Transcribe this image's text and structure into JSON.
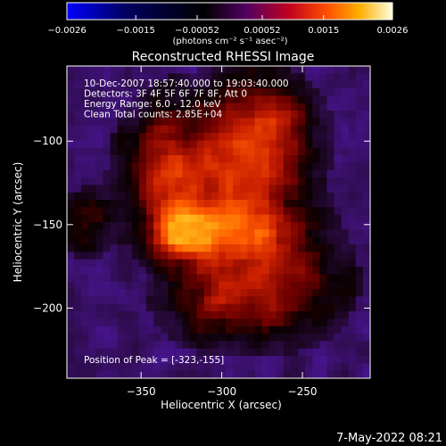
{
  "chart_data": {
    "type": "heatmap",
    "title": "Reconstructed RHESSI Image",
    "xlabel": "Heliocentric X (arcsec)",
    "ylabel": "Heliocentric Y (arcsec)",
    "xlim": [
      -396,
      -208
    ],
    "ylim": [
      -242,
      -55
    ],
    "xticks": [
      -350,
      -300,
      -250
    ],
    "yticks": [
      -100,
      -150,
      -200
    ],
    "xtick_labels": [
      "−350",
      "−300",
      "−250"
    ],
    "ytick_labels": [
      "−100",
      "−150",
      "−200"
    ],
    "colorbar": {
      "range": [
        -0.0026,
        0.0026
      ],
      "tick_values": [
        -0.0026,
        -0.0015,
        -0.00052,
        0.00052,
        0.0015,
        0.0026
      ],
      "tick_labels": [
        "−0.0026",
        "−0.0015",
        "−0.00052",
        "0.00052",
        "0.0015",
        "0.0026"
      ],
      "unit_label": "(photons cm⁻² s⁻¹ asec⁻²)",
      "colors": [
        "#0000ff",
        "#000000",
        "#700070",
        "#ff0000",
        "#ffb000",
        "#ffffff"
      ]
    },
    "peak": [
      -323,
      -155
    ],
    "annotations": [
      "10-Dec-2007 18:57:40.000 to 19:03:40.000",
      "Detectors: 3F 4F 5F 6F 7F 8F, Att 0",
      "Energy Range: 6.0 - 12.0 keV",
      "Clean     Total counts: 2.85E+04"
    ],
    "peak_label": "Position of Peak = [-323,-155]"
  },
  "timestamp": "7-May-2022 08:21"
}
